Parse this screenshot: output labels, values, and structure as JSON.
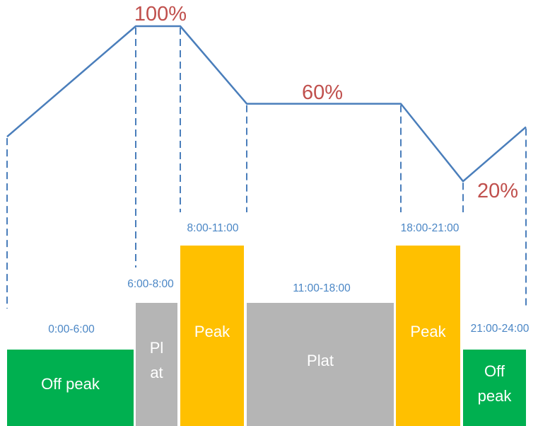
{
  "colors": {
    "line": "#4a7ebb",
    "percent": "#c0504d",
    "time": "#4a86c5",
    "off_peak": "#00b050",
    "plat": "#b5b5b5",
    "peak": "#ffc000",
    "block_text": "#ffffff"
  },
  "load_curve": {
    "points": [
      {
        "hour": 0,
        "load": 43
      },
      {
        "hour": 6,
        "load": 100
      },
      {
        "hour": 8,
        "load": 100
      },
      {
        "hour": 11,
        "load": 60
      },
      {
        "hour": 18,
        "load": 60
      },
      {
        "hour": 21,
        "load": 20
      },
      {
        "hour": 24,
        "load": 48
      }
    ],
    "labels": [
      {
        "text": "100%"
      },
      {
        "text": "60%"
      },
      {
        "text": "20%"
      }
    ]
  },
  "periods": [
    {
      "time": "0:00-6:00",
      "label_lines": [
        "Off peak"
      ],
      "type": "off_peak",
      "level": 0.36
    },
    {
      "time": "6:00-8:00",
      "label_lines": [
        "Pl",
        "at"
      ],
      "type": "plat",
      "level": 0.58
    },
    {
      "time": "8:00-11:00",
      "label_lines": [
        "Peak"
      ],
      "type": "peak",
      "level": 0.85
    },
    {
      "time": "11:00-18:00",
      "label_lines": [
        "Plat"
      ],
      "type": "plat",
      "level": 0.58
    },
    {
      "time": "18:00-21:00",
      "label_lines": [
        "Peak"
      ],
      "type": "peak",
      "level": 0.85
    },
    {
      "time": "21:00-24:00",
      "label_lines": [
        "Off",
        "peak"
      ],
      "type": "off_peak",
      "level": 0.36
    }
  ]
}
